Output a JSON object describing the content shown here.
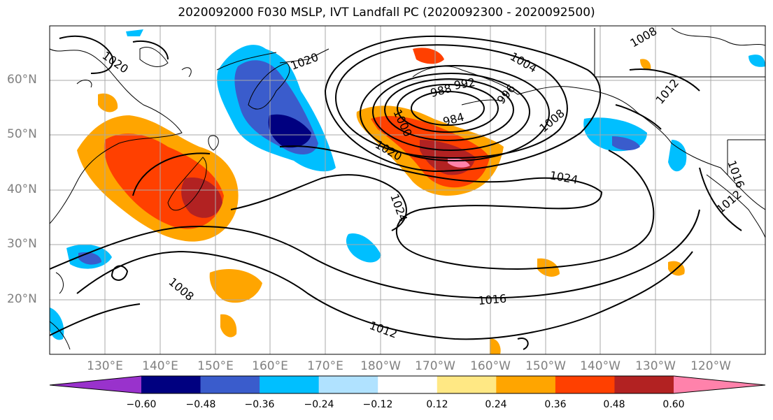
{
  "title": "2020092000 F030 MSLP, IVT Landfall PC (2020092300 - 2020092500)",
  "lat_labels": [
    "60°N",
    "50°N",
    "40°N",
    "30°N",
    "20°N"
  ],
  "lon_labels": [
    "130°E",
    "140°E",
    "150°E",
    "160°E",
    "170°E",
    "180°W",
    "170°W",
    "160°W",
    "150°W",
    "140°W",
    "130°W",
    "120°W"
  ],
  "contour_labels": [
    "1020",
    "1020",
    "1004",
    "1008",
    "988",
    "992",
    "996",
    "1000",
    "984",
    "1008",
    "1012",
    "1020",
    "1024",
    "1024",
    "1016",
    "1012",
    "1008",
    "1016",
    "1012"
  ],
  "colorbar": {
    "ticks": [
      "−0.60",
      "−0.48",
      "−0.36",
      "−0.24",
      "−0.12",
      "0.12",
      "0.24",
      "0.36",
      "0.48",
      "0.60"
    ],
    "colors": [
      "#9932cc",
      "#000080",
      "#3a5ccc",
      "#00bfff",
      "#b0e2ff",
      "#ffffff",
      "#ffe884",
      "#ffa500",
      "#ff4000",
      "#b22222",
      "#ff82ab"
    ]
  }
}
